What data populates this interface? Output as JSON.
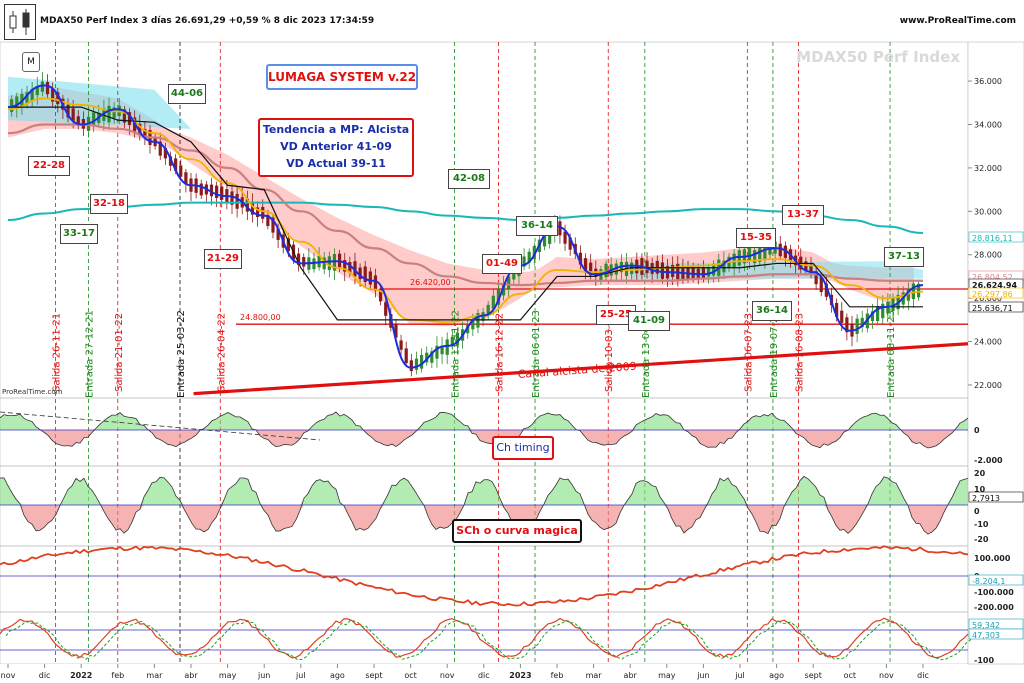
{
  "header": {
    "title": "MDAX50 Perf Index 3 días 26.691,29 +0,59 % 8 dic 2023 17:34:59",
    "brand": "www.ProRealTime.com",
    "watermark": "MDAX50 Perf Index",
    "source": "ProRealTime.com"
  },
  "annotations": {
    "m_badge": "M",
    "system_title": "LUMAGA SYSTEM v.22",
    "trend_lines": [
      "Tendencia a MP: Alcista",
      "VD Anterior 41-09",
      "VD Actual 39-11"
    ],
    "ch_timing": "Ch timing",
    "sch": "SCh o curva magica",
    "channel": "Canal alcista de 2009",
    "level_24800": "24.800,00",
    "level_26420": "26.420,00"
  },
  "colors": {
    "price_candle_up": "#2e8b2e",
    "price_candle_down": "#8b1a1a",
    "blue_line": "#1a2ee0",
    "yellow_line": "#f0b400",
    "teal_line": "#18b8b8",
    "brown_line": "#c88080",
    "black_line": "#111111",
    "red": "#e01010",
    "green": "#1a8a1a"
  },
  "chart_data": [
    {
      "type": "line",
      "panel": "price",
      "x_ticks": [
        "nov",
        "dic",
        "2022",
        "feb",
        "mar",
        "abr",
        "may",
        "jun",
        "jul",
        "ago",
        "sept",
        "oct",
        "nov",
        "dic",
        "2023",
        "feb",
        "mar",
        "abr",
        "may",
        "jun",
        "jul",
        "ago",
        "sept",
        "oct",
        "nov",
        "dic"
      ],
      "y_ticks": [
        "22.000",
        "24.000",
        "26.000",
        "28.000",
        "30.000",
        "32.000",
        "34.000",
        "36.000"
      ],
      "ylim": [
        21400,
        37800
      ],
      "price_labels": [
        "28.816,11",
        "26.804,52",
        "26.624,94",
        "26.297,86",
        "25.636,71"
      ],
      "series": [
        {
          "x": [
            0,
            1,
            2,
            3,
            4,
            5,
            6,
            7,
            8,
            9,
            10,
            11,
            12,
            13,
            14,
            15,
            16,
            17,
            18,
            19,
            20,
            21,
            22,
            23,
            24,
            25
          ],
          "values": [
            34800,
            35800,
            34000,
            34700,
            33200,
            31200,
            30700,
            29800,
            27600,
            27700,
            26800,
            22800,
            23800,
            25200,
            27500,
            29300,
            27100,
            27500,
            27200,
            27100,
            27900,
            28300,
            27200,
            24500,
            25600,
            26600
          ]
        },
        {
          "x": [
            0,
            1,
            2,
            3,
            4,
            5,
            6,
            7,
            8,
            9,
            10,
            11,
            12,
            13,
            14,
            15,
            16,
            17,
            18,
            19,
            20,
            21,
            22,
            23,
            24,
            25
          ],
          "values": [
            34700,
            35200,
            34900,
            34600,
            33600,
            32400,
            31300,
            30000,
            28600,
            27400,
            26400,
            25000,
            24900,
            25200,
            26200,
            27300,
            27200,
            27300,
            27400,
            27500,
            27700,
            27800,
            27500,
            26600,
            26000,
            26300
          ]
        },
        {
          "x": [
            0,
            1,
            2,
            3,
            4,
            5,
            6,
            7,
            8,
            9,
            10,
            11,
            12,
            13,
            14,
            15,
            16,
            17,
            18,
            19,
            20,
            21,
            22,
            23,
            24,
            25
          ],
          "values": [
            29600,
            29900,
            30100,
            30200,
            30300,
            30400,
            30400,
            30400,
            30400,
            30300,
            30200,
            30000,
            29800,
            29700,
            29600,
            29700,
            29800,
            29900,
            30000,
            30100,
            30100,
            30000,
            29800,
            29600,
            29300,
            29000
          ]
        },
        {
          "x": [
            0,
            1,
            2,
            3,
            4,
            5,
            6,
            7,
            8,
            9,
            10,
            11,
            12,
            13,
            14,
            15,
            16,
            17,
            18,
            19,
            20,
            21,
            22,
            23,
            24,
            25
          ],
          "values": [
            33600,
            34000,
            34000,
            33800,
            33400,
            32800,
            32000,
            31000,
            30000,
            29100,
            28300,
            27600,
            27000,
            26700,
            26600,
            26700,
            26800,
            26800,
            26800,
            26900,
            27000,
            27100,
            27100,
            26900,
            26800,
            26800
          ]
        },
        {
          "x": [
            0,
            1,
            2,
            3,
            4,
            5,
            6,
            7,
            8,
            9,
            10,
            11,
            12,
            13,
            14,
            15,
            16,
            17,
            18,
            19,
            20,
            21,
            22,
            23,
            24,
            25
          ],
          "values": [
            34800,
            34800,
            34800,
            34200,
            34100,
            33200,
            31200,
            31000,
            27400,
            25000,
            25000,
            25000,
            25000,
            25000,
            25000,
            27000,
            27000,
            27400,
            27400,
            27400,
            27400,
            27600,
            27600,
            25600,
            25600,
            25600
          ]
        }
      ],
      "levels": [
        26420,
        24800
      ],
      "channel_line": {
        "x": [
          6,
          25
        ],
        "values": [
          21600,
          23900
        ]
      }
    }
  ],
  "vd_boxes": [
    {
      "label": "22-28",
      "color": "red"
    },
    {
      "label": "33-17",
      "color": "green"
    },
    {
      "label": "32-18",
      "color": "red"
    },
    {
      "label": "44-06",
      "color": "green"
    },
    {
      "label": "21-29",
      "color": "red"
    },
    {
      "label": "42-08",
      "color": "green"
    },
    {
      "label": "01-49",
      "color": "red"
    },
    {
      "label": "36-14",
      "color": "green"
    },
    {
      "label": "25-25",
      "color": "red"
    },
    {
      "label": "41-09",
      "color": "green"
    },
    {
      "label": "15-35",
      "color": "red"
    },
    {
      "label": "36-14",
      "color": "green"
    },
    {
      "label": "13-37",
      "color": "red"
    },
    {
      "label": "37-13",
      "color": "green"
    }
  ],
  "signals": [
    {
      "label": "Salida 26-11-21",
      "color": "red"
    },
    {
      "label": "Entrada 27-12-21",
      "color": "green"
    },
    {
      "label": "Salida 21-01-22",
      "color": "red"
    },
    {
      "label": "Entrada 25-03-22",
      "color": "black"
    },
    {
      "label": "Salida 26-04-22",
      "color": "red"
    },
    {
      "label": "Entrada 11-11-22",
      "color": "green"
    },
    {
      "label": "Salida 16-12-22",
      "color": "red"
    },
    {
      "label": "Entrada 06-01-23",
      "color": "green"
    },
    {
      "label": "Salida 10-03-23",
      "color": "red"
    },
    {
      "label": "Entrada 13-04-23",
      "color": "green"
    },
    {
      "label": "Salida 06-07-23",
      "color": "red"
    },
    {
      "label": "Entrada 19-07-23",
      "color": "green"
    },
    {
      "label": "Salida 16-08-23",
      "color": "red"
    },
    {
      "label": "Entrada 08-11-23",
      "color": "green"
    }
  ],
  "subpanels": {
    "timing": {
      "ticks": [
        "0",
        "-2.000"
      ]
    },
    "sch": {
      "ticks": [
        "20",
        "10",
        "0",
        "-10",
        "-20"
      ],
      "value": "2,7913"
    },
    "curve": {
      "ticks": [
        "100.000",
        "0",
        "-100.000",
        "-200.000"
      ],
      "value": "-8.204,1"
    },
    "osc": {
      "ticks": [
        "-100"
      ],
      "values": [
        "59,342",
        "47,303"
      ]
    }
  }
}
